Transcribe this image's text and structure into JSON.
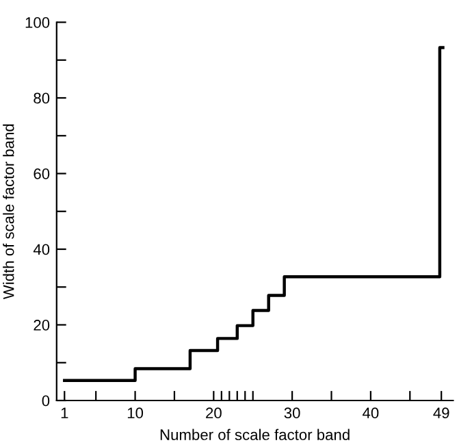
{
  "chart_data": {
    "type": "step",
    "xlabel": "Number of scale factor band",
    "ylabel": "Width of scale factor band",
    "x": [
      1,
      10,
      17,
      20.5,
      23,
      25,
      27,
      29,
      48.8,
      49.2
    ],
    "series": [
      {
        "color": "#000000",
        "values": [
          5.3,
          8.4,
          13.2,
          16.4,
          19.8,
          23.8,
          27.8,
          32.7,
          93.3,
          93.3
        ]
      }
    ],
    "xlim": [
      0,
      50.5
    ],
    "ylim": [
      0,
      100
    ],
    "xticks": [
      1,
      {
        "value": 5,
        "label": null
      },
      10,
      {
        "value": 15,
        "label": null
      },
      20,
      {
        "value": 21,
        "label": null
      },
      {
        "value": 22,
        "label": null
      },
      {
        "value": 23,
        "label": null
      },
      {
        "value": 24,
        "label": null
      },
      {
        "value": 25,
        "label": null
      },
      30,
      {
        "value": 35,
        "label": null
      },
      40,
      {
        "value": 45,
        "label": null
      },
      49
    ],
    "yticks": [
      0,
      {
        "value": 10,
        "label": null
      },
      20,
      {
        "value": 30,
        "label": null
      },
      40,
      {
        "value": 50,
        "label": null
      },
      60,
      {
        "value": 70,
        "label": null
      },
      80,
      {
        "value": 90,
        "label": null
      },
      100
    ],
    "grid": false,
    "legend": false,
    "marker": "none",
    "line_style": "solid"
  }
}
